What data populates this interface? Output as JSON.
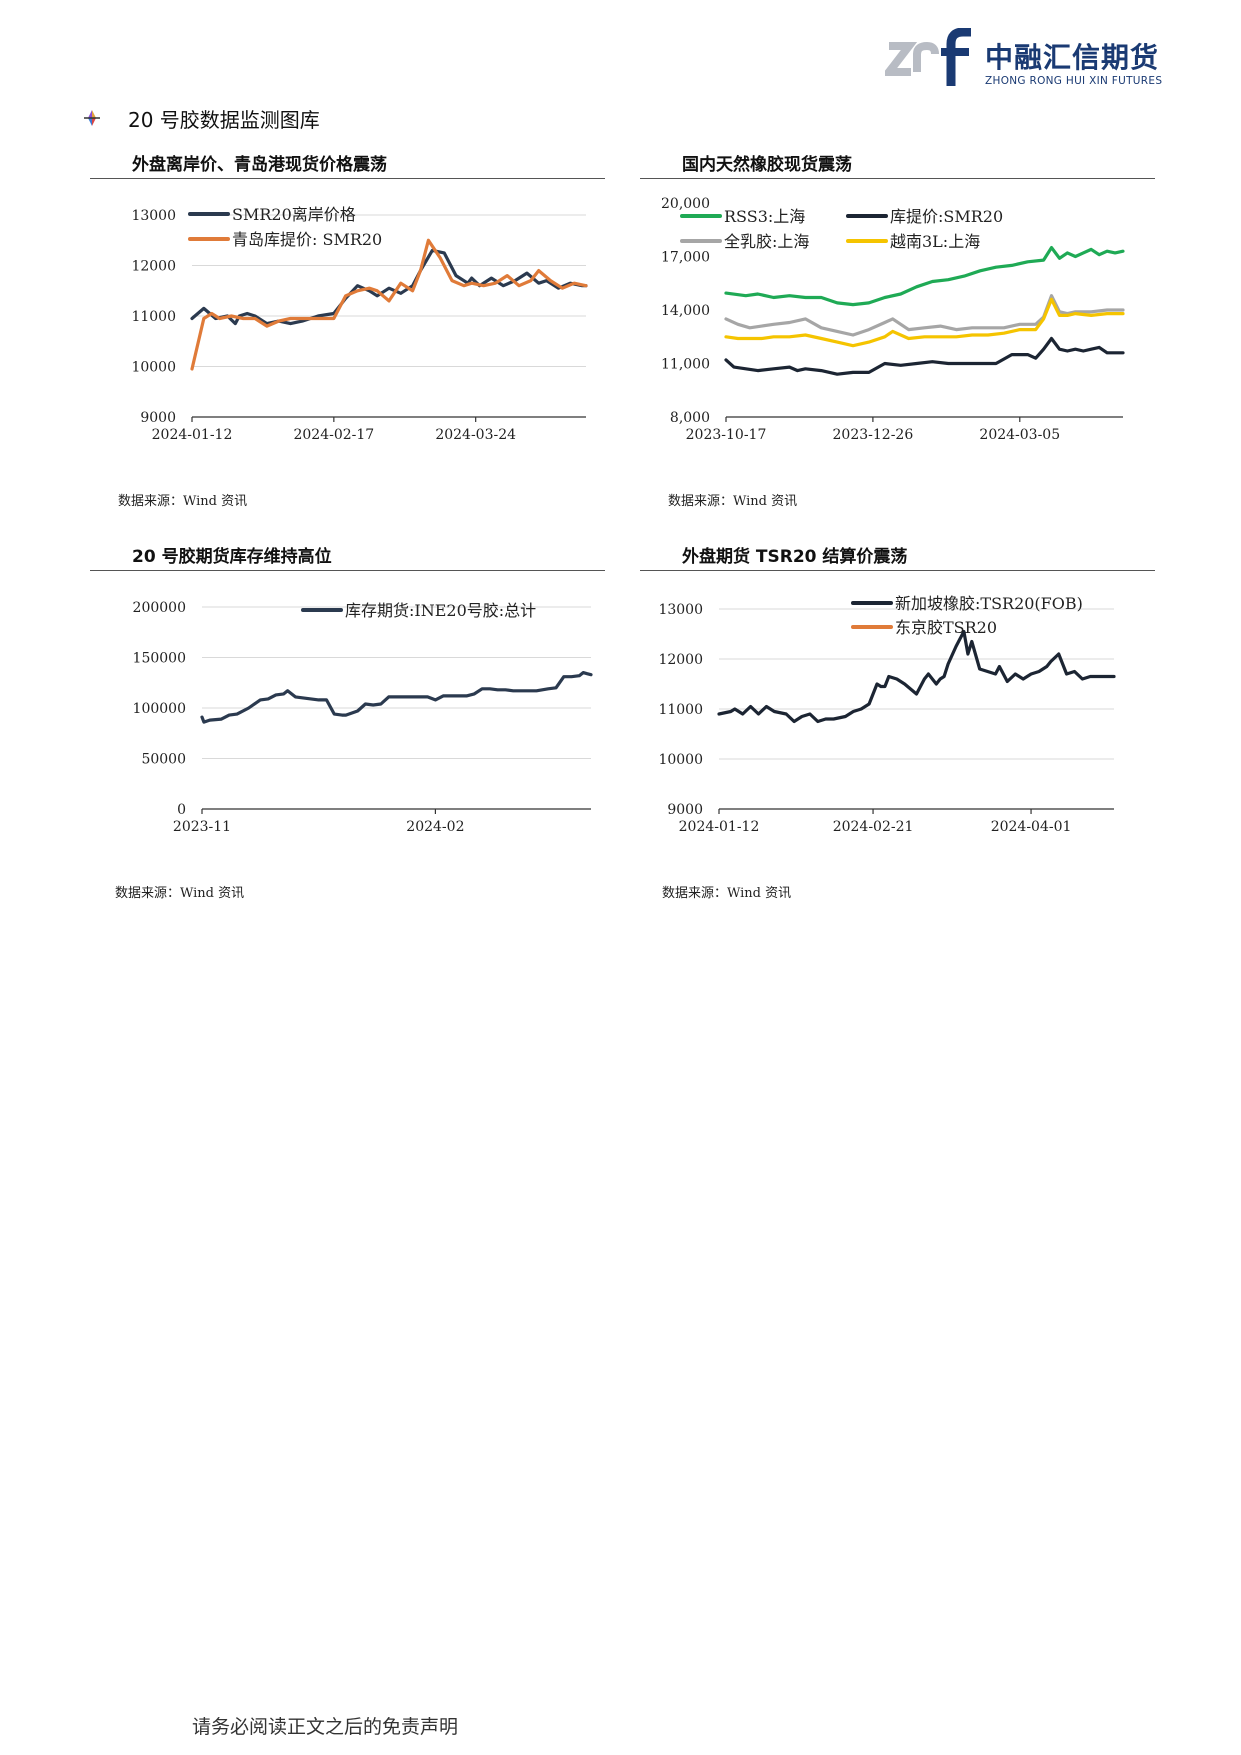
{
  "header": {
    "logo_cn": "中融汇信期货",
    "logo_en": "ZHONG RONG HUI XIN FUTURES",
    "brand_color": "#1a3a73"
  },
  "section": {
    "title": "20 号胶数据监测图库",
    "bullet_icon": "diamond-bullet-icon"
  },
  "panels": [
    {
      "title": "外盘离岸价、青岛港现货价格震荡",
      "source": "数据来源：Wind 资讯"
    },
    {
      "title": "国内天然橡胶现货震荡",
      "source": "数据来源：Wind 资讯"
    },
    {
      "title": "20 号胶期货库存维持高位",
      "source": "数据来源：Wind 资讯"
    },
    {
      "title": "外盘期货 TSR20 结算价震荡",
      "source": "数据来源：Wind 资讯"
    }
  ],
  "footer": {
    "text": "请务必阅读正文之后的免责声明"
  },
  "chart_data": [
    {
      "type": "line",
      "ylim": [
        9000,
        13000
      ],
      "yticks": [
        "9000",
        "10000",
        "11000",
        "12000",
        "13000"
      ],
      "xlim": [
        0,
        100
      ],
      "xticks": [
        {
          "label": "2024-01-12",
          "x": 0
        },
        {
          "label": "2024-02-17",
          "x": 36
        },
        {
          "label": "2024-03-24",
          "x": 72
        }
      ],
      "grid": true,
      "legend": "top-left",
      "series": [
        {
          "name": "SMR20离岸价格",
          "color": "#2b3a4f",
          "x": [
            0,
            3,
            6,
            9,
            11,
            12,
            14,
            16,
            19,
            22,
            25,
            28,
            32,
            36,
            39,
            42,
            45,
            47,
            50,
            53,
            56,
            58,
            61,
            64,
            67,
            70,
            71,
            73,
            76,
            79,
            82,
            85,
            88,
            90,
            93,
            96,
            99,
            100
          ],
          "y": [
            10950,
            11150,
            10950,
            11000,
            10850,
            11000,
            11050,
            11000,
            10850,
            10900,
            10850,
            10900,
            11000,
            11050,
            11350,
            11600,
            11500,
            11400,
            11550,
            11450,
            11600,
            11900,
            12300,
            12250,
            11800,
            11650,
            11750,
            11600,
            11750,
            11600,
            11700,
            11850,
            11650,
            11700,
            11550,
            11650,
            11600,
            11600
          ]
        },
        {
          "name": "青岛库提价: SMR20",
          "color": "#e07b39",
          "x": [
            0,
            3,
            5,
            7,
            10,
            13,
            16,
            19,
            22,
            25,
            28,
            32,
            36,
            39,
            42,
            45,
            47,
            50,
            53,
            56,
            58,
            60,
            63,
            66,
            69,
            71,
            74,
            77,
            80,
            83,
            86,
            88,
            91,
            94,
            97,
            100
          ],
          "y": [
            9950,
            10950,
            11050,
            10950,
            11000,
            10950,
            10950,
            10800,
            10900,
            10950,
            10950,
            10950,
            10950,
            11400,
            11500,
            11550,
            11500,
            11300,
            11650,
            11500,
            11900,
            12500,
            12150,
            11700,
            11600,
            11650,
            11600,
            11650,
            11800,
            11600,
            11700,
            11900,
            11700,
            11550,
            11650,
            11600
          ]
        }
      ]
    },
    {
      "type": "line",
      "ylim": [
        8000,
        20000
      ],
      "yticks": [
        "8,000",
        "11,000",
        "14,000",
        "17,000",
        "20,000"
      ],
      "xlim": [
        0,
        100
      ],
      "xticks": [
        {
          "label": "2023-10-17",
          "x": 0
        },
        {
          "label": "2023-12-26",
          "x": 37
        },
        {
          "label": "2024-03-05",
          "x": 74
        }
      ],
      "grid": false,
      "legend": "top",
      "series": [
        {
          "name": "RSS3:上海",
          "color": "#1faa55",
          "x": [
            0,
            5,
            8,
            12,
            16,
            20,
            24,
            28,
            32,
            36,
            40,
            44,
            48,
            52,
            56,
            60,
            64,
            68,
            72,
            76,
            80,
            82,
            84,
            86,
            88,
            90,
            92,
            94,
            96,
            98,
            100
          ],
          "y": [
            14950,
            14800,
            14900,
            14700,
            14800,
            14700,
            14700,
            14400,
            14300,
            14400,
            14700,
            14900,
            15300,
            15600,
            15700,
            15900,
            16200,
            16400,
            16500,
            16700,
            16800,
            17500,
            16900,
            17200,
            17000,
            17200,
            17400,
            17100,
            17300,
            17200,
            17300
          ]
        },
        {
          "name": "库提价:SMR20",
          "color": "#1c2533",
          "x": [
            0,
            2,
            5,
            8,
            12,
            16,
            18,
            20,
            24,
            28,
            32,
            36,
            40,
            44,
            48,
            52,
            56,
            60,
            64,
            68,
            72,
            74,
            76,
            78,
            80,
            82,
            84,
            86,
            88,
            90,
            92,
            94,
            96,
            98,
            100
          ],
          "y": [
            11200,
            10800,
            10700,
            10600,
            10700,
            10800,
            10600,
            10700,
            10600,
            10400,
            10500,
            10500,
            11000,
            10900,
            11000,
            11100,
            11000,
            11000,
            11000,
            11000,
            11500,
            11500,
            11500,
            11300,
            11800,
            12400,
            11800,
            11700,
            11800,
            11700,
            11800,
            11900,
            11600,
            11600,
            11600
          ]
        },
        {
          "name": "全乳胶:上海",
          "color": "#a6a6a6",
          "x": [
            0,
            3,
            6,
            9,
            12,
            16,
            20,
            24,
            28,
            32,
            36,
            40,
            42,
            46,
            50,
            54,
            58,
            62,
            66,
            70,
            74,
            78,
            80,
            82,
            84,
            86,
            88,
            92,
            96,
            100
          ],
          "y": [
            13500,
            13200,
            13000,
            13100,
            13200,
            13300,
            13500,
            13000,
            12800,
            12600,
            12900,
            13300,
            13500,
            12900,
            13000,
            13100,
            12900,
            13000,
            13000,
            13000,
            13200,
            13200,
            13600,
            14800,
            13900,
            13800,
            13900,
            13900,
            14000,
            14000
          ]
        },
        {
          "name": "越南3L:上海",
          "color": "#f5c400",
          "x": [
            0,
            3,
            6,
            9,
            12,
            16,
            20,
            24,
            28,
            32,
            36,
            40,
            42,
            46,
            50,
            54,
            58,
            62,
            66,
            70,
            74,
            78,
            80,
            82,
            84,
            86,
            88,
            92,
            96,
            100
          ],
          "y": [
            12500,
            12400,
            12400,
            12400,
            12500,
            12500,
            12600,
            12400,
            12200,
            12000,
            12200,
            12500,
            12800,
            12400,
            12500,
            12500,
            12500,
            12600,
            12600,
            12700,
            12900,
            12900,
            13500,
            14600,
            13700,
            13700,
            13800,
            13700,
            13800,
            13800
          ]
        }
      ]
    },
    {
      "type": "line",
      "ylim": [
        0,
        200000
      ],
      "yticks": [
        "0",
        "50000",
        "100000",
        "150000",
        "200000"
      ],
      "xlim": [
        0,
        100
      ],
      "xticks": [
        {
          "label": "2023-11",
          "x": 0
        },
        {
          "label": "2024-02",
          "x": 60
        }
      ],
      "grid": true,
      "legend": "top-right",
      "series": [
        {
          "name": "库存期货:INE20号胶:总计",
          "color": "#2b3a4f",
          "x": [
            0,
            0.5,
            2,
            5,
            7,
            9,
            12,
            15,
            17,
            19,
            21,
            22,
            24,
            26,
            28,
            30,
            32,
            34,
            36,
            37,
            40,
            42,
            44,
            46,
            48,
            50,
            52,
            55,
            58,
            60,
            62,
            65,
            68,
            70,
            72,
            74,
            76,
            78,
            80,
            83,
            86,
            89,
            91,
            93,
            95,
            97,
            98,
            99,
            100
          ],
          "y": [
            91000,
            86000,
            88000,
            89000,
            93000,
            94000,
            100000,
            108000,
            109000,
            113000,
            114000,
            117000,
            111000,
            110000,
            109000,
            108000,
            108000,
            94000,
            93000,
            93000,
            97000,
            104000,
            103000,
            104000,
            111000,
            111000,
            111000,
            111000,
            111000,
            108000,
            112000,
            112000,
            112000,
            114000,
            119000,
            119000,
            118000,
            118000,
            117000,
            117000,
            117000,
            119000,
            120000,
            131000,
            131000,
            132000,
            135000,
            134000,
            133000
          ]
        }
      ]
    },
    {
      "type": "line",
      "ylim": [
        9000,
        13000
      ],
      "yticks": [
        "9000",
        "10000",
        "11000",
        "12000",
        "13000"
      ],
      "xlim": [
        0,
        100
      ],
      "xticks": [
        {
          "label": "2024-01-12",
          "x": 0
        },
        {
          "label": "2024-02-21",
          "x": 39
        },
        {
          "label": "2024-04-01",
          "x": 79
        }
      ],
      "grid": true,
      "legend": "top-right",
      "series": [
        {
          "name": "新加坡橡胶:TSR20(FOB)",
          "color": "#1c2533",
          "x": [
            0,
            3,
            4,
            6,
            8,
            10,
            12,
            14,
            17,
            19,
            21,
            23,
            25,
            27,
            29,
            32,
            34,
            36,
            38,
            40,
            41,
            42,
            43,
            45,
            47,
            50,
            52,
            53,
            55,
            56,
            57,
            58,
            60,
            61,
            62,
            63,
            64,
            66,
            68,
            70,
            71,
            73,
            75,
            77,
            79,
            81,
            83,
            84,
            86,
            88,
            90,
            92,
            94,
            96,
            98,
            100
          ],
          "y": [
            10900,
            10950,
            11000,
            10900,
            11050,
            10900,
            11050,
            10950,
            10900,
            10750,
            10850,
            10900,
            10750,
            10800,
            10800,
            10850,
            10950,
            11000,
            11100,
            11500,
            11450,
            11450,
            11650,
            11600,
            11500,
            11300,
            11600,
            11700,
            11500,
            11600,
            11650,
            11900,
            12250,
            12400,
            12550,
            12100,
            12350,
            11800,
            11750,
            11700,
            11850,
            11550,
            11700,
            11600,
            11700,
            11750,
            11850,
            11950,
            12100,
            11700,
            11750,
            11600,
            11650,
            11650,
            11650,
            11650
          ]
        },
        {
          "name": "东京胶TSR20",
          "color": "#e07b39",
          "x": [],
          "y": []
        }
      ]
    }
  ]
}
